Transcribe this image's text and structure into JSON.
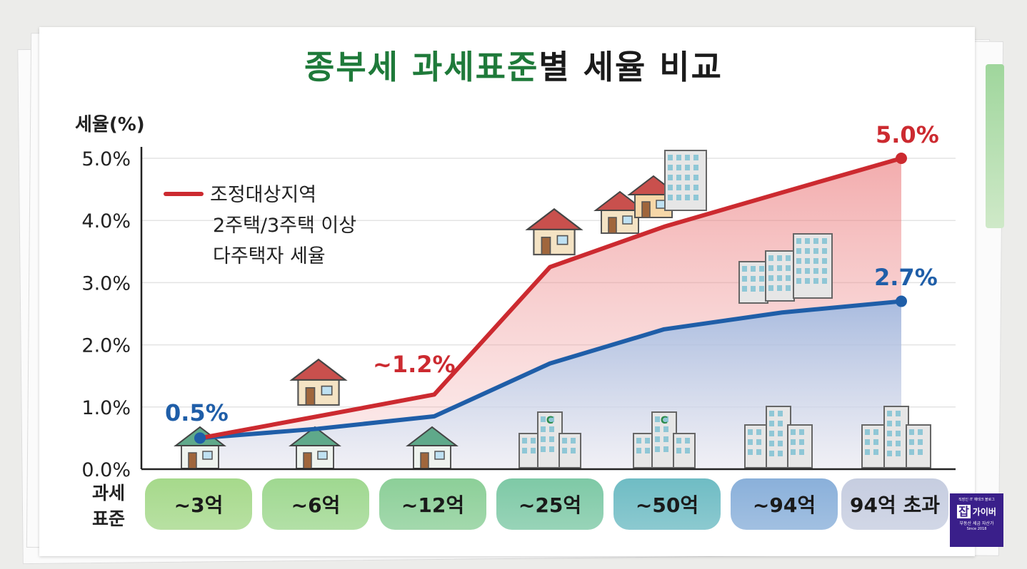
{
  "title": {
    "part1": "종부세 과세표준",
    "part2": "별 세율 비교"
  },
  "colors": {
    "red": "#cc2a30",
    "blue": "#1f5ea8",
    "title_green": "#1f7a3a",
    "logo": "#3a1f8a"
  },
  "chart_data": {
    "type": "line",
    "title": "종부세 과세표준별 세율 비교",
    "ylabel": "세율(%)",
    "xlabel": "과세 표준",
    "ylim": [
      0,
      5
    ],
    "yticks": [
      "0.0%",
      "1.0%",
      "2.0%",
      "3.0%",
      "4.0%",
      "5.0%"
    ],
    "categories": [
      "~3억",
      "~6억",
      "~12억",
      "~25억",
      "~50억",
      "~94억",
      "94억 초과"
    ],
    "series": [
      {
        "name": "조정대상지역 2주택/3주택 이상 다주택자 세율",
        "color": "#cc2a30",
        "values": [
          0.5,
          0.85,
          1.2,
          3.25,
          3.9,
          4.45,
          5.0
        ]
      },
      {
        "values": [
          0.5,
          0.65,
          0.85,
          1.7,
          2.25,
          2.52,
          2.7
        ]
      }
    ],
    "annotations": {
      "start": "0.5%",
      "mid": "~1.2%",
      "red_end": "5.0%",
      "blue_end": "2.7%"
    },
    "legend": {
      "line1": "조정대상지역",
      "line2": "2주택/3주택 이상",
      "line3": "다주택자 세율",
      "position": "top-left"
    },
    "area_fill": true,
    "grid": true
  },
  "xaxis_label": {
    "line1": "과세",
    "line2": "표준"
  },
  "category_colors": [
    "#a6d98b",
    "#9fd890",
    "#8ccf98",
    "#7ec9a6",
    "#6fbcc4",
    "#8ab0da",
    "#c6cde0"
  ],
  "logo": {
    "top": "직장인 IT 재테크 블로그",
    "mark": "잡",
    "name": "가이버",
    "bottom": "부동산 세금 자산가",
    "since": "Since 2018"
  }
}
